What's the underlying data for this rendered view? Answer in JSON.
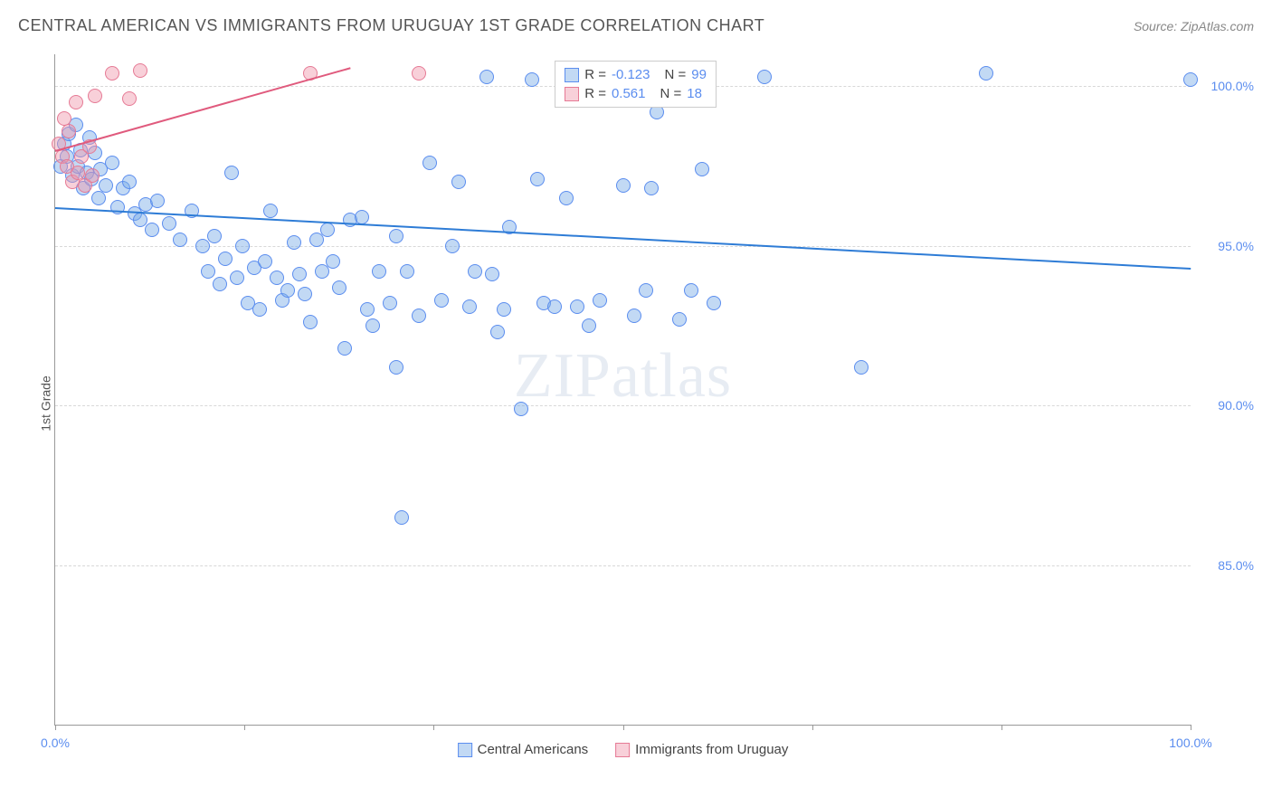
{
  "header": {
    "title": "CENTRAL AMERICAN VS IMMIGRANTS FROM URUGUAY 1ST GRADE CORRELATION CHART",
    "source": "Source: ZipAtlas.com"
  },
  "ylabel": "1st Grade",
  "watermark": {
    "part1": "ZIP",
    "part2": "atlas"
  },
  "chart": {
    "type": "scatter",
    "xlim": [
      0,
      100
    ],
    "ylim": [
      80,
      101
    ],
    "x_ticks_minor": [
      0,
      16.67,
      33.33,
      50,
      66.67,
      83.33,
      100
    ],
    "x_ticks_labeled": [
      {
        "pos": 0,
        "label": "0.0%"
      },
      {
        "pos": 100,
        "label": "100.0%"
      }
    ],
    "y_ticks": [
      {
        "pos": 85,
        "label": "85.0%"
      },
      {
        "pos": 90,
        "label": "90.0%"
      },
      {
        "pos": 95,
        "label": "95.0%"
      },
      {
        "pos": 100,
        "label": "100.0%"
      }
    ],
    "background_color": "#ffffff",
    "grid_color": "#d8d8d8",
    "series": [
      {
        "name": "Central Americans",
        "fill": "rgba(120,170,230,0.45)",
        "stroke": "#5b8def",
        "marker_radius": 8,
        "R": "-0.123",
        "N": "99",
        "trend": {
          "x1": 0,
          "y1": 96.2,
          "x2": 100,
          "y2": 94.3,
          "color": "#2e7cd6",
          "width": 2
        },
        "points": [
          [
            0.5,
            97.5
          ],
          [
            0.8,
            98.2
          ],
          [
            1.0,
            97.8
          ],
          [
            1.2,
            98.5
          ],
          [
            1.5,
            97.2
          ],
          [
            1.8,
            98.8
          ],
          [
            2.0,
            97.5
          ],
          [
            2.2,
            98.0
          ],
          [
            2.5,
            96.8
          ],
          [
            2.8,
            97.3
          ],
          [
            3.0,
            98.4
          ],
          [
            3.2,
            97.1
          ],
          [
            3.5,
            97.9
          ],
          [
            3.8,
            96.5
          ],
          [
            4.0,
            97.4
          ],
          [
            4.5,
            96.9
          ],
          [
            5.0,
            97.6
          ],
          [
            5.5,
            96.2
          ],
          [
            6.0,
            96.8
          ],
          [
            6.5,
            97.0
          ],
          [
            7.0,
            96.0
          ],
          [
            7.5,
            95.8
          ],
          [
            8.0,
            96.3
          ],
          [
            8.5,
            95.5
          ],
          [
            9.0,
            96.4
          ],
          [
            10.0,
            95.7
          ],
          [
            11.0,
            95.2
          ],
          [
            12.0,
            96.1
          ],
          [
            13.0,
            95.0
          ],
          [
            13.5,
            94.2
          ],
          [
            14.0,
            95.3
          ],
          [
            14.5,
            93.8
          ],
          [
            15.0,
            94.6
          ],
          [
            15.5,
            97.3
          ],
          [
            16.0,
            94.0
          ],
          [
            16.5,
            95.0
          ],
          [
            17.0,
            93.2
          ],
          [
            17.5,
            94.3
          ],
          [
            18.0,
            93.0
          ],
          [
            18.5,
            94.5
          ],
          [
            19.0,
            96.1
          ],
          [
            19.5,
            94.0
          ],
          [
            20.0,
            93.3
          ],
          [
            20.5,
            93.6
          ],
          [
            21.0,
            95.1
          ],
          [
            21.5,
            94.1
          ],
          [
            22.0,
            93.5
          ],
          [
            22.5,
            92.6
          ],
          [
            23.0,
            95.2
          ],
          [
            23.5,
            94.2
          ],
          [
            24.0,
            95.5
          ],
          [
            24.5,
            94.5
          ],
          [
            25.0,
            93.7
          ],
          [
            25.5,
            91.8
          ],
          [
            26.0,
            95.8
          ],
          [
            27.0,
            95.9
          ],
          [
            27.5,
            93.0
          ],
          [
            28.0,
            92.5
          ],
          [
            28.5,
            94.2
          ],
          [
            29.5,
            93.2
          ],
          [
            30.0,
            95.3
          ],
          [
            30.0,
            91.2
          ],
          [
            30.5,
            86.5
          ],
          [
            31.0,
            94.2
          ],
          [
            32.0,
            92.8
          ],
          [
            33.0,
            97.6
          ],
          [
            34.0,
            93.3
          ],
          [
            35.0,
            95.0
          ],
          [
            35.5,
            97.0
          ],
          [
            36.5,
            93.1
          ],
          [
            37.0,
            94.2
          ],
          [
            38.0,
            100.3
          ],
          [
            38.5,
            94.1
          ],
          [
            39.0,
            92.3
          ],
          [
            39.5,
            93.0
          ],
          [
            40.0,
            95.6
          ],
          [
            41.0,
            89.9
          ],
          [
            42.0,
            100.2
          ],
          [
            42.5,
            97.1
          ],
          [
            43.0,
            93.2
          ],
          [
            44.0,
            93.1
          ],
          [
            45.0,
            96.5
          ],
          [
            46.0,
            93.1
          ],
          [
            47.0,
            92.5
          ],
          [
            48.0,
            93.3
          ],
          [
            50.0,
            96.9
          ],
          [
            51.0,
            92.8
          ],
          [
            52.0,
            93.6
          ],
          [
            52.5,
            96.8
          ],
          [
            53.0,
            99.2
          ],
          [
            54.0,
            100.3
          ],
          [
            55.0,
            92.7
          ],
          [
            56.0,
            93.6
          ],
          [
            57.0,
            97.4
          ],
          [
            58.0,
            93.2
          ],
          [
            62.5,
            100.3
          ],
          [
            71.0,
            91.2
          ],
          [
            82.0,
            100.4
          ],
          [
            100.0,
            100.2
          ]
        ]
      },
      {
        "name": "Immigrants from Uruguay",
        "fill": "rgba(240,150,170,0.45)",
        "stroke": "#e67a95",
        "marker_radius": 8,
        "R": "0.561",
        "N": "18",
        "trend": {
          "x1": 0,
          "y1": 98.0,
          "x2": 26,
          "y2": 100.6,
          "color": "#e05a7d",
          "width": 2
        },
        "points": [
          [
            0.3,
            98.2
          ],
          [
            0.6,
            97.8
          ],
          [
            0.8,
            99.0
          ],
          [
            1.0,
            97.5
          ],
          [
            1.2,
            98.6
          ],
          [
            1.5,
            97.0
          ],
          [
            1.8,
            99.5
          ],
          [
            2.0,
            97.3
          ],
          [
            2.3,
            97.8
          ],
          [
            2.6,
            96.9
          ],
          [
            3.0,
            98.1
          ],
          [
            3.3,
            97.2
          ],
          [
            3.5,
            99.7
          ],
          [
            5.0,
            100.4
          ],
          [
            6.5,
            99.6
          ],
          [
            7.5,
            100.5
          ],
          [
            22.5,
            100.4
          ],
          [
            32.0,
            100.4
          ]
        ]
      }
    ]
  },
  "stats_box": {
    "left_pct": 44,
    "top_pct": 1
  },
  "legend_bottom": [
    {
      "label": "Central Americans",
      "fill": "rgba(120,170,230,0.45)",
      "stroke": "#5b8def"
    },
    {
      "label": "Immigrants from Uruguay",
      "fill": "rgba(240,150,170,0.45)",
      "stroke": "#e67a95"
    }
  ]
}
